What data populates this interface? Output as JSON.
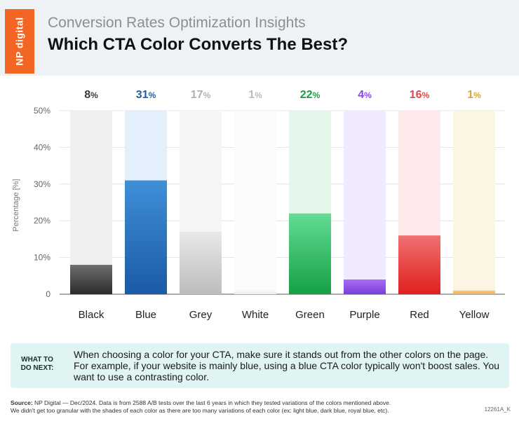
{
  "header": {
    "brand": "NP digital",
    "subtitle": "Conversion Rates Optimization Insights",
    "title": "Which CTA Color Converts The Best?"
  },
  "chart_data": {
    "type": "bar",
    "categories": [
      "Black",
      "Blue",
      "Grey",
      "White",
      "Green",
      "Purple",
      "Red",
      "Yellow"
    ],
    "values": [
      8,
      31,
      17,
      1,
      22,
      4,
      16,
      1
    ],
    "value_labels": [
      "8%",
      "31%",
      "17%",
      "1%",
      "22%",
      "4%",
      "16%",
      "1%"
    ],
    "ylabel": "Percentage [%]",
    "ylim": [
      0,
      50
    ],
    "yticks": [
      0,
      10,
      20,
      30,
      40,
      50
    ],
    "ytick_labels": [
      "0",
      "10%",
      "20%",
      "30%",
      "40%",
      "50%"
    ],
    "grid": true,
    "colors": {
      "Black": {
        "top": "#6e6e6e",
        "bottom": "#2b2b2b",
        "track": "#efefef",
        "label": "#3a3a3a"
      },
      "Blue": {
        "top": "#3f8fd8",
        "bottom": "#1a5aa6",
        "track": "#e3effa",
        "label": "#1f5fa8"
      },
      "Grey": {
        "top": "#e9e9e9",
        "bottom": "#bdbdbd",
        "track": "#f6f6f6",
        "label": "#b0b0b0"
      },
      "White": {
        "top": "#f7f7f7",
        "bottom": "#eeeeee",
        "track": "#fbfbfb",
        "label": "#bbbbbb"
      },
      "Green": {
        "top": "#62dc94",
        "bottom": "#15a044",
        "track": "#e4f6ea",
        "label": "#1a9b45"
      },
      "Purple": {
        "top": "#a86bf2",
        "bottom": "#7b3fe0",
        "track": "#f1e9fd",
        "label": "#8a47e6"
      },
      "Red": {
        "top": "#f07070",
        "bottom": "#e02020",
        "track": "#fde9e9",
        "label": "#e04848"
      },
      "Yellow": {
        "top": "#f8cc7a",
        "bottom": "#eeb25a",
        "track": "#fdf5e4",
        "label": "#d8a43f"
      }
    }
  },
  "note": {
    "tag_line1": "WHAT TO",
    "tag_line2": "DO NEXT:",
    "text": "When choosing a color for your CTA, make sure it stands out from the other colors on the page. For example, if your website is mainly blue, using a blue CTA color typically won't boost sales. You want to use a contrasting color."
  },
  "footer": {
    "source_label": "Source:",
    "source_text": "NP Digital — Dec/2024. Data is from 2588 A/B tests over the last 6 years in which they tested variations of the colors mentioned above.",
    "source_line2": "We didn't get too granular with the shades of each color as there are too many variations of each color (ex: light blue, dark blue, royal blue, etc).",
    "code": "12261A_K"
  }
}
